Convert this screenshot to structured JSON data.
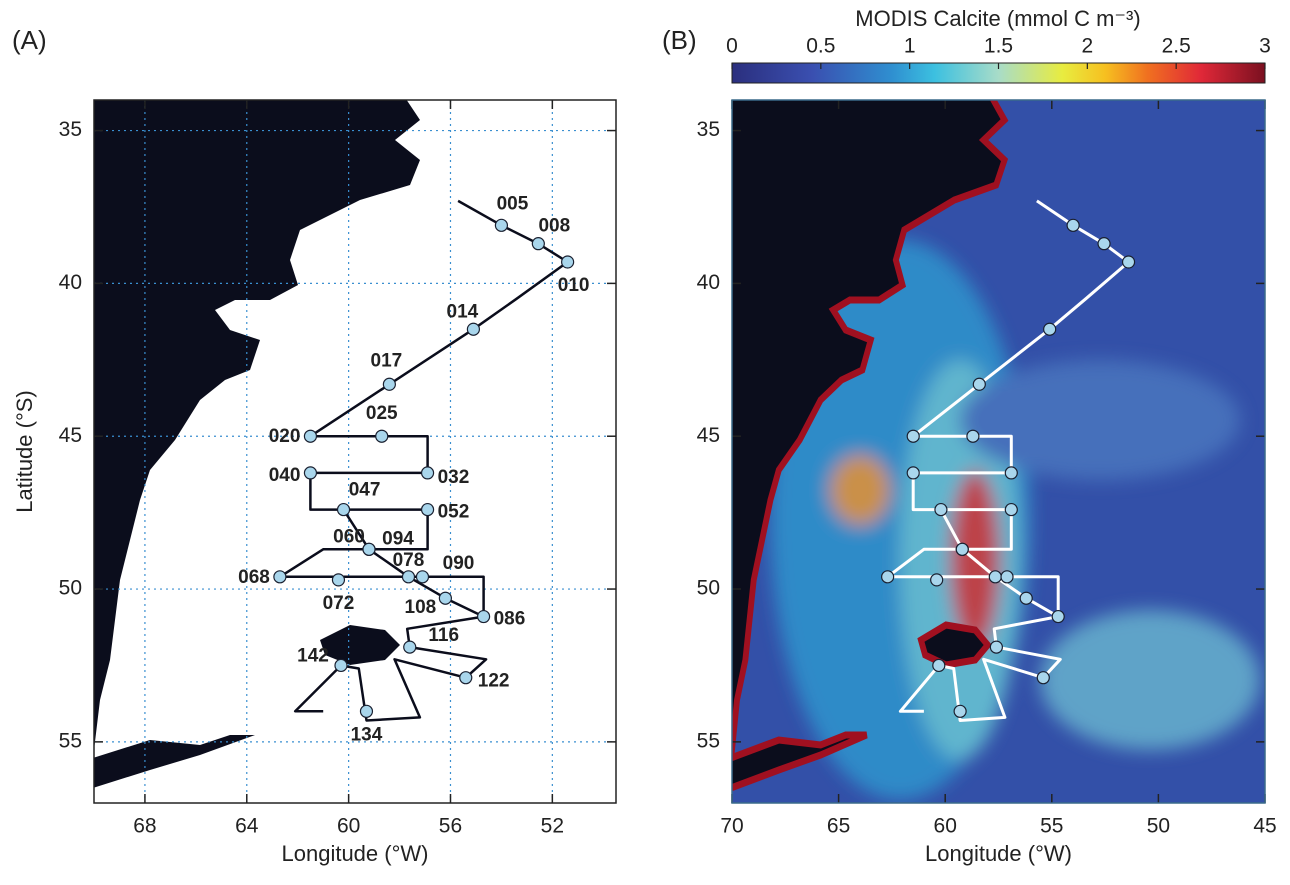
{
  "panels": [
    {
      "tag": "(A)",
      "xlabel": "Longitude (°W)",
      "ylabel": "Latitude (°S)",
      "xlim": [
        70,
        49.5
      ],
      "ylim": [
        34,
        57
      ],
      "xticks": [
        68,
        64,
        60,
        56,
        52
      ],
      "yticks": [
        35,
        40,
        45,
        50,
        55
      ],
      "grid": true
    },
    {
      "tag": "(B)",
      "xlabel": "Longitude (°W)",
      "xlim": [
        70,
        45
      ],
      "ylim": [
        34,
        57
      ],
      "xticks": [
        70,
        65,
        60,
        55,
        50,
        45
      ],
      "yticks": [
        35,
        40,
        45,
        50,
        55
      ],
      "grid": false
    }
  ],
  "colorbar": {
    "title": "MODIS Calcite (mmol C m⁻³)",
    "lim": [
      0,
      3
    ],
    "ticks": [
      0,
      0.5,
      1,
      1.5,
      2,
      2.5,
      3
    ]
  },
  "stations": {
    "labels": [
      "005",
      "008",
      "010",
      "014",
      "017",
      "020",
      "025",
      "032",
      "040",
      "047",
      "052",
      "060",
      "094",
      "078",
      "090",
      "068",
      "072",
      "108",
      "086",
      "116",
      "122",
      "134",
      "142"
    ],
    "lon": [
      54.0,
      52.55,
      51.4,
      55.1,
      58.4,
      61.5,
      58.7,
      56.9,
      61.5,
      60.2,
      56.9,
      59.2,
      59.2,
      57.65,
      57.1,
      62.7,
      60.4,
      56.2,
      54.7,
      57.6,
      55.4,
      59.3,
      60.3
    ],
    "lat": [
      38.1,
      38.7,
      39.3,
      41.5,
      43.3,
      45.0,
      45.0,
      46.2,
      46.2,
      47.4,
      47.4,
      48.7,
      48.7,
      49.6,
      49.6,
      49.6,
      49.7,
      50.3,
      50.9,
      51.9,
      52.9,
      54.0,
      52.5
    ]
  },
  "track": {
    "lon": [
      55.7,
      54.0,
      52.55,
      51.4,
      53.4,
      55.1,
      58.4,
      61.5,
      58.7,
      56.9,
      56.9,
      61.5,
      61.5,
      60.2,
      56.9,
      56.9,
      61.0,
      62.7,
      54.7,
      54.7,
      56.2,
      57.65,
      59.2,
      60.2,
      null,
      54.7,
      57.7,
      57.6,
      54.6,
      55.4,
      58.2,
      57.2,
      59.3,
      59.6,
      60.3,
      62.1,
      61.0
    ],
    "lat": [
      37.3,
      38.1,
      38.7,
      39.3,
      40.5,
      41.5,
      43.3,
      45.0,
      45.0,
      45.0,
      46.2,
      46.2,
      47.4,
      47.4,
      47.4,
      48.7,
      48.7,
      49.6,
      49.6,
      50.9,
      50.3,
      49.6,
      48.7,
      47.4,
      null,
      50.9,
      51.3,
      51.9,
      52.3,
      52.9,
      52.3,
      54.2,
      54.3,
      52.6,
      52.5,
      54.0,
      54.0
    ]
  }
}
